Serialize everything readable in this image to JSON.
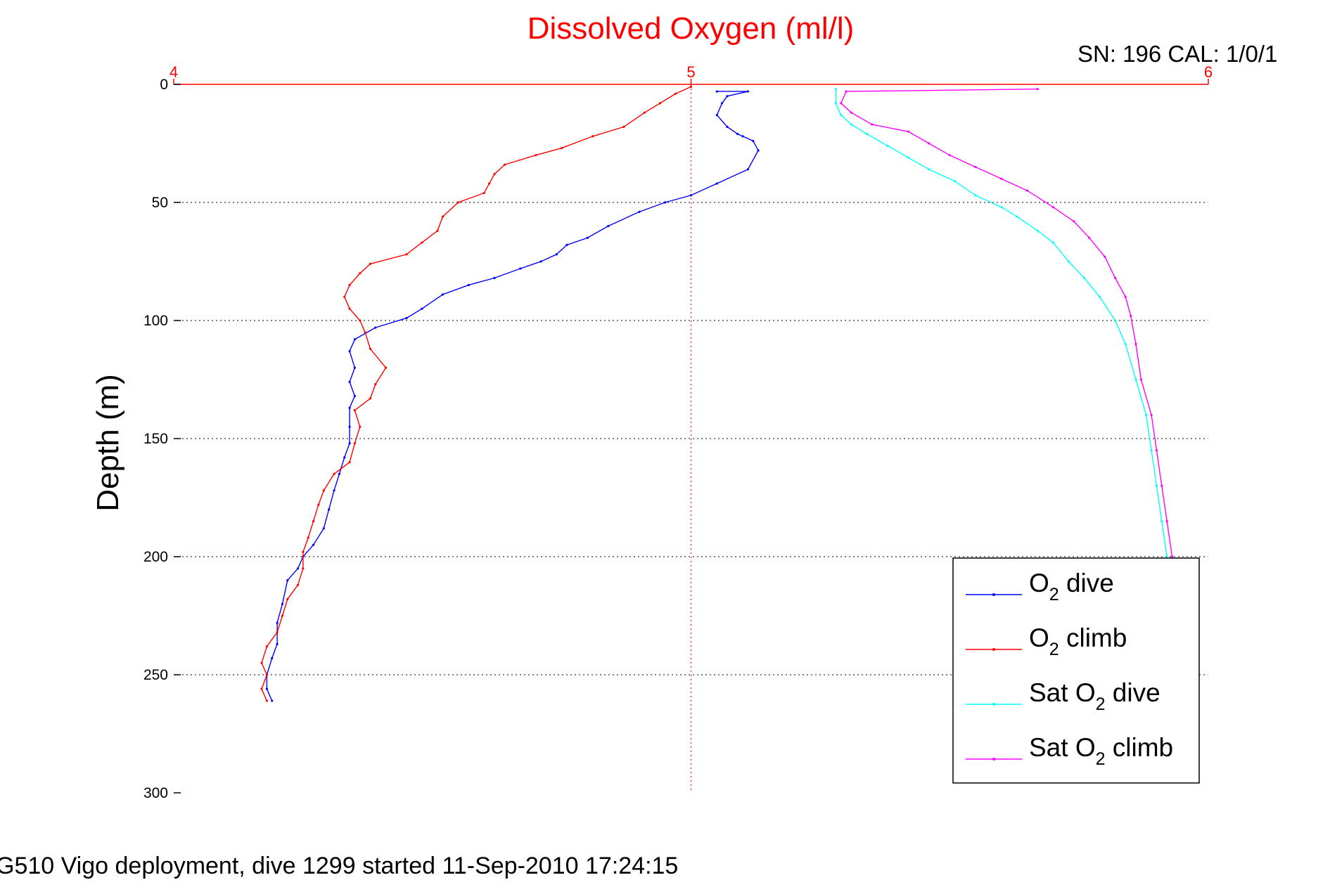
{
  "header": {
    "serial_label": "SN: 196  CAL: 1/0/1"
  },
  "footer": {
    "caption": "G510 Vigo deployment, dive 1299 started 11-Sep-2010 17:24:15"
  },
  "chart_data": {
    "type": "line",
    "title": "Dissolved Oxygen (ml/l)",
    "xlabel": "",
    "ylabel": "Depth (m)",
    "xlim": [
      4,
      6
    ],
    "ylim": [
      0,
      300
    ],
    "y_reversed": true,
    "x_axis_position": "top",
    "xticks": [
      "4",
      "5",
      "6"
    ],
    "yticks": [
      "0",
      "50",
      "100",
      "150",
      "200",
      "250",
      "300"
    ],
    "grid": true,
    "legend_position": "bottom-right",
    "colors": {
      "title": "#ff0000",
      "x_axis": "#ff0000",
      "grid": "#000000"
    },
    "series": [
      {
        "name": "O2 dive",
        "legend": {
          "pre": "O",
          "sub": "2",
          "post": " dive"
        },
        "color": "#0000ff",
        "points": [
          [
            5.05,
            3
          ],
          [
            5.11,
            3
          ],
          [
            5.07,
            5
          ],
          [
            5.06,
            8
          ],
          [
            5.05,
            13
          ],
          [
            5.07,
            18
          ],
          [
            5.09,
            21
          ],
          [
            5.1,
            22
          ],
          [
            5.12,
            24
          ],
          [
            5.13,
            28
          ],
          [
            5.11,
            36
          ],
          [
            5.05,
            42
          ],
          [
            5.0,
            47
          ],
          [
            4.95,
            50
          ],
          [
            4.9,
            54
          ],
          [
            4.84,
            60
          ],
          [
            4.8,
            65
          ],
          [
            4.76,
            68
          ],
          [
            4.74,
            72
          ],
          [
            4.71,
            75
          ],
          [
            4.67,
            78
          ],
          [
            4.62,
            82
          ],
          [
            4.57,
            85
          ],
          [
            4.52,
            89
          ],
          [
            4.48,
            95
          ],
          [
            4.45,
            99
          ],
          [
            4.39,
            103
          ],
          [
            4.35,
            108
          ],
          [
            4.34,
            113
          ],
          [
            4.35,
            120
          ],
          [
            4.34,
            126
          ],
          [
            4.35,
            132
          ],
          [
            4.34,
            137
          ],
          [
            4.34,
            145
          ],
          [
            4.34,
            152
          ],
          [
            4.33,
            158
          ],
          [
            4.32,
            165
          ],
          [
            4.31,
            172
          ],
          [
            4.3,
            180
          ],
          [
            4.29,
            188
          ],
          [
            4.27,
            195
          ],
          [
            4.25,
            200
          ],
          [
            4.24,
            205
          ],
          [
            4.22,
            210
          ],
          [
            4.21,
            220
          ],
          [
            4.2,
            228
          ],
          [
            4.2,
            237
          ],
          [
            4.19,
            243
          ],
          [
            4.18,
            250
          ],
          [
            4.18,
            256
          ],
          [
            4.19,
            261
          ]
        ]
      },
      {
        "name": "O2 climb",
        "legend": {
          "pre": "O",
          "sub": "2",
          "post": " climb"
        },
        "color": "#ff0000",
        "points": [
          [
            5.0,
            1
          ],
          [
            4.97,
            4
          ],
          [
            4.94,
            8
          ],
          [
            4.91,
            12
          ],
          [
            4.87,
            18
          ],
          [
            4.81,
            22
          ],
          [
            4.75,
            27
          ],
          [
            4.7,
            30
          ],
          [
            4.64,
            34
          ],
          [
            4.62,
            38
          ],
          [
            4.61,
            42
          ],
          [
            4.6,
            46
          ],
          [
            4.55,
            50
          ],
          [
            4.52,
            56
          ],
          [
            4.51,
            62
          ],
          [
            4.48,
            67
          ],
          [
            4.45,
            72
          ],
          [
            4.38,
            76
          ],
          [
            4.36,
            80
          ],
          [
            4.34,
            85
          ],
          [
            4.33,
            90
          ],
          [
            4.34,
            95
          ],
          [
            4.36,
            100
          ],
          [
            4.37,
            105
          ],
          [
            4.38,
            112
          ],
          [
            4.41,
            120
          ],
          [
            4.39,
            127
          ],
          [
            4.38,
            133
          ],
          [
            4.35,
            138
          ],
          [
            4.36,
            145
          ],
          [
            4.35,
            152
          ],
          [
            4.34,
            160
          ],
          [
            4.31,
            165
          ],
          [
            4.29,
            172
          ],
          [
            4.28,
            178
          ],
          [
            4.27,
            185
          ],
          [
            4.26,
            192
          ],
          [
            4.25,
            198
          ],
          [
            4.25,
            205
          ],
          [
            4.24,
            212
          ],
          [
            4.22,
            218
          ],
          [
            4.21,
            225
          ],
          [
            4.2,
            232
          ],
          [
            4.18,
            238
          ],
          [
            4.17,
            245
          ],
          [
            4.18,
            250
          ],
          [
            4.17,
            256
          ],
          [
            4.18,
            261
          ]
        ]
      },
      {
        "name": "Sat O2 dive",
        "legend": {
          "pre": "Sat O",
          "sub": "2",
          "post": " dive"
        },
        "color": "#00ffff",
        "points": [
          [
            5.28,
            2
          ],
          [
            5.28,
            8
          ],
          [
            5.29,
            13
          ],
          [
            5.31,
            17
          ],
          [
            5.34,
            21
          ],
          [
            5.38,
            26
          ],
          [
            5.42,
            31
          ],
          [
            5.46,
            36
          ],
          [
            5.51,
            41
          ],
          [
            5.55,
            47
          ],
          [
            5.6,
            52
          ],
          [
            5.63,
            56
          ],
          [
            5.67,
            62
          ],
          [
            5.7,
            67
          ],
          [
            5.73,
            75
          ],
          [
            5.76,
            82
          ],
          [
            5.79,
            90
          ],
          [
            5.82,
            100
          ],
          [
            5.84,
            110
          ],
          [
            5.86,
            125
          ],
          [
            5.88,
            140
          ],
          [
            5.89,
            155
          ],
          [
            5.9,
            170
          ],
          [
            5.91,
            185
          ],
          [
            5.92,
            200
          ]
        ]
      },
      {
        "name": "Sat O2 climb",
        "legend": {
          "pre": "Sat O",
          "sub": "2",
          "post": " climb"
        },
        "color": "#ff00ff",
        "points": [
          [
            5.67,
            2
          ],
          [
            5.3,
            3
          ],
          [
            5.29,
            8
          ],
          [
            5.31,
            12
          ],
          [
            5.35,
            17
          ],
          [
            5.42,
            20
          ],
          [
            5.46,
            25
          ],
          [
            5.5,
            30
          ],
          [
            5.55,
            35
          ],
          [
            5.6,
            40
          ],
          [
            5.65,
            45
          ],
          [
            5.7,
            52
          ],
          [
            5.74,
            58
          ],
          [
            5.77,
            65
          ],
          [
            5.8,
            73
          ],
          [
            5.82,
            82
          ],
          [
            5.84,
            90
          ],
          [
            5.85,
            98
          ],
          [
            5.86,
            110
          ],
          [
            5.87,
            125
          ],
          [
            5.89,
            140
          ],
          [
            5.9,
            155
          ],
          [
            5.91,
            170
          ],
          [
            5.92,
            185
          ],
          [
            5.93,
            200
          ]
        ]
      }
    ]
  }
}
